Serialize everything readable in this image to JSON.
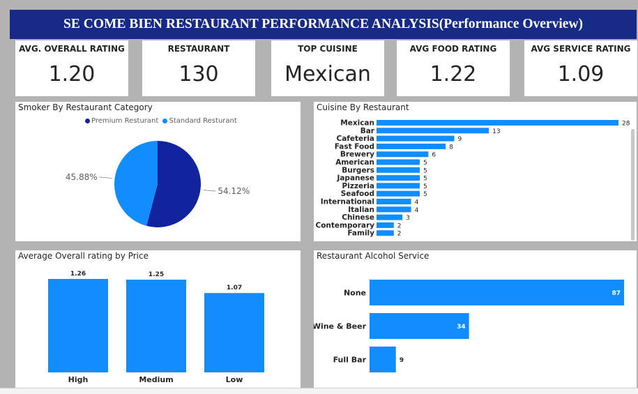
{
  "header": {
    "title": "SE COME BIEN RESTAURANT PERFORMANCE ANALYSIS(Performance Overview)"
  },
  "kpis": [
    {
      "label": "AVG. OVERALL RATING",
      "value": "1.20"
    },
    {
      "label": "RESTAURANT",
      "value": "130"
    },
    {
      "label": "TOP CUISINE",
      "value": "Mexican"
    },
    {
      "label": "AVG FOOD RATING",
      "value": "1.22"
    },
    {
      "label": "AVG SERVICE RATING",
      "value": "1.09"
    }
  ],
  "colors": {
    "title_bg": "#162a86",
    "premium": "#12239e",
    "standard": "#118dff"
  },
  "chart_data": [
    {
      "type": "pie",
      "title": "Smoker By Restaurant Category",
      "legend": [
        {
          "name": "Premium Resturant",
          "color": "#12239e"
        },
        {
          "name": "Standard Resturant",
          "color": "#118dff"
        }
      ],
      "values": [
        54.12,
        45.88
      ],
      "labels": [
        "54.12%",
        "45.88%"
      ]
    },
    {
      "type": "bar",
      "orientation": "horizontal",
      "title": "Cuisine By Restaurant",
      "categories": [
        "Mexican",
        "Bar",
        "Cafeteria",
        "Fast Food",
        "Brewery",
        "American",
        "Burgers",
        "Japanese",
        "Pizzeria",
        "Seafood",
        "International",
        "Italian",
        "Chinese",
        "Contemporary",
        "Family"
      ],
      "values": [
        28,
        13,
        9,
        8,
        6,
        5,
        5,
        5,
        5,
        5,
        4,
        4,
        3,
        2,
        2
      ],
      "xlim": [
        0,
        28
      ]
    },
    {
      "type": "bar",
      "title": "Average Overall rating by Price",
      "categories": [
        "High",
        "Medium",
        "Low"
      ],
      "values": [
        1.26,
        1.25,
        1.07
      ],
      "labels": [
        "1.26",
        "1.25",
        "1.07"
      ],
      "ylim": [
        0,
        1.26
      ]
    },
    {
      "type": "bar",
      "orientation": "horizontal",
      "title": "Restaurant Alcohol Service",
      "categories": [
        "None",
        "Wine & Beer",
        "Full Bar"
      ],
      "values": [
        87,
        34,
        9
      ],
      "xlim": [
        0,
        87
      ]
    }
  ]
}
